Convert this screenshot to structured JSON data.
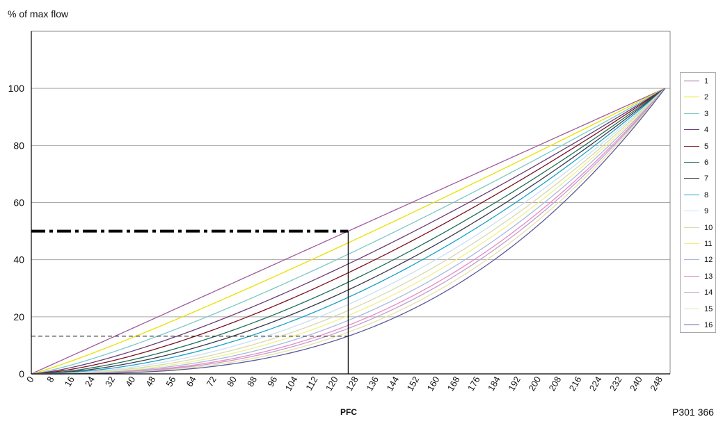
{
  "chart_data": {
    "type": "line",
    "ylabel": "% of max flow",
    "xlabel": "PFC",
    "figure_id": "P301 366",
    "xlim": [
      0,
      252
    ],
    "ylim": [
      0,
      120
    ],
    "grid": "horizontal",
    "legend_position": "right",
    "x_ticks": [
      0,
      8,
      16,
      24,
      32,
      40,
      48,
      56,
      64,
      72,
      80,
      88,
      96,
      104,
      112,
      120,
      128,
      136,
      144,
      152,
      160,
      168,
      176,
      184,
      192,
      200,
      208,
      216,
      224,
      232,
      240,
      248
    ],
    "y_ticks": [
      0,
      20,
      40,
      60,
      80,
      100
    ],
    "series_end": [
      250,
      100
    ],
    "series": [
      {
        "name": "1",
        "color": "#a05a9c",
        "values_at_125": 50
      },
      {
        "name": "2",
        "color": "#e8e000",
        "values_at_125": 45.9
      },
      {
        "name": "3",
        "color": "#7ac8c8",
        "values_at_125": 41.9
      },
      {
        "name": "4",
        "color": "#6a3a78",
        "values_at_125": 38.5
      },
      {
        "name": "5",
        "color": "#7a1020",
        "values_at_125": 35.4
      },
      {
        "name": "6",
        "color": "#1f6e58",
        "values_at_125": 32.1
      },
      {
        "name": "7",
        "color": "#3a3848",
        "values_at_125": 29.4
      },
      {
        "name": "8",
        "color": "#1aa0c8",
        "values_at_125": 26.8
      },
      {
        "name": "9",
        "color": "#c8e0f0",
        "values_at_125": 24.3
      },
      {
        "name": "10",
        "color": "#d8d8b0",
        "values_at_125": 22.2
      },
      {
        "name": "11",
        "color": "#f0f088",
        "values_at_125": 20.4
      },
      {
        "name": "12",
        "color": "#a8b8e0",
        "values_at_125": 18.7
      },
      {
        "name": "13",
        "color": "#e888c8",
        "values_at_125": 17.0
      },
      {
        "name": "14",
        "color": "#c0a0cc",
        "values_at_125": 15.9
      },
      {
        "name": "15",
        "color": "#e8e0a8",
        "values_at_125": 14.6
      },
      {
        "name": "16",
        "color": "#5a5a9c",
        "values_at_125": 13.2
      }
    ],
    "annotations": {
      "dashdot_line": {
        "x": [
          0,
          125
        ],
        "y": 50
      },
      "dashed_line": {
        "x": [
          0,
          125
        ],
        "y": 13.2
      },
      "vertical_line": {
        "x": 125,
        "y": [
          0,
          50
        ]
      }
    }
  }
}
